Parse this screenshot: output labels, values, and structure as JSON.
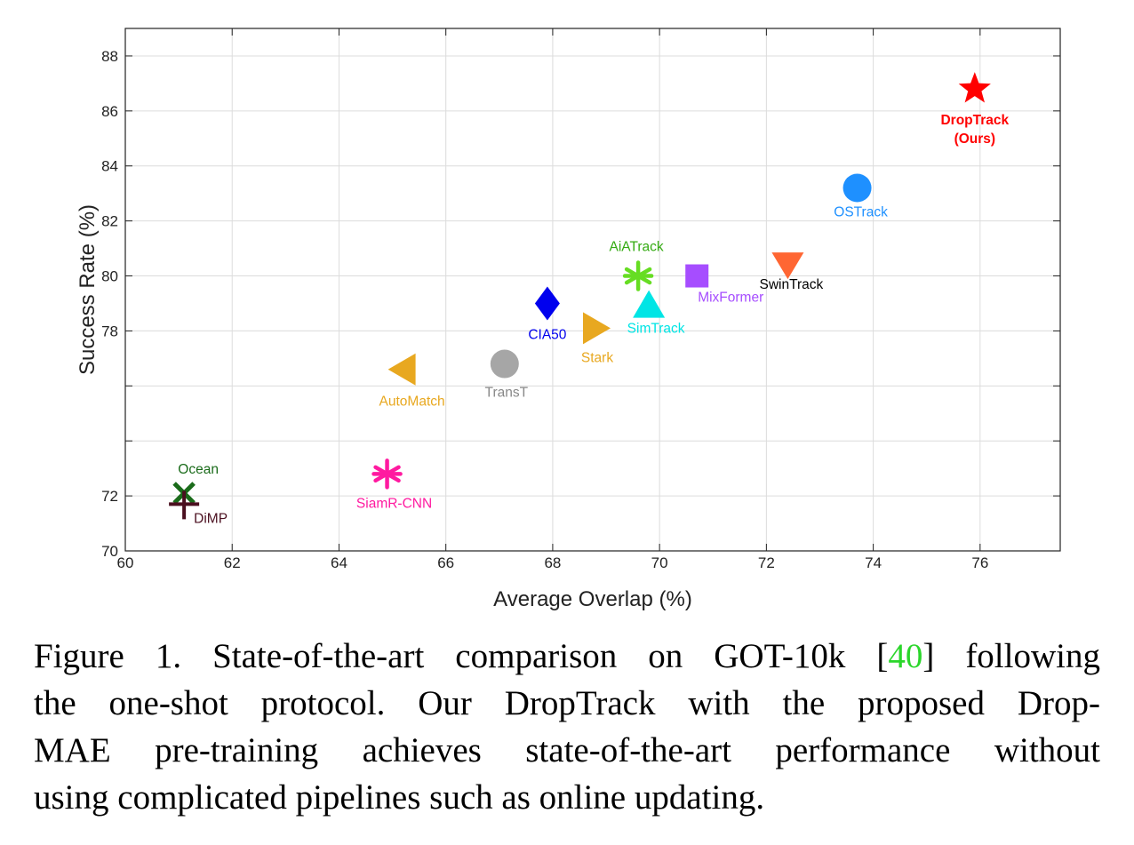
{
  "chart_data": {
    "type": "scatter",
    "xlabel": "Average Overlap (%)",
    "ylabel": "Success Rate (%)",
    "xlim": [
      60,
      77.5
    ],
    "ylim": [
      70,
      89
    ],
    "xticks": [
      60,
      62,
      64,
      66,
      68,
      70,
      72,
      74,
      76
    ],
    "yticks": [
      70,
      72,
      74,
      76,
      78,
      80,
      82,
      84,
      86,
      88
    ],
    "ytick_labels": [
      "70",
      "72",
      "",
      "",
      "78",
      "80",
      "82",
      "84",
      "86",
      "88"
    ],
    "grid": true,
    "points": [
      {
        "name": "DropTrack",
        "sub": "(Ours)",
        "x": 75.9,
        "y": 86.8,
        "marker": "star",
        "color": "#ff0000",
        "bold": true
      },
      {
        "name": "OSTrack",
        "x": 73.7,
        "y": 83.2,
        "marker": "circle",
        "color": "#1e90ff"
      },
      {
        "name": "SwinTrack",
        "x": 72.4,
        "y": 80.4,
        "marker": "triangle-down",
        "color": "#ff6633",
        "label_color": "#000000"
      },
      {
        "name": "MixFormer",
        "x": 70.7,
        "y": 80.0,
        "marker": "square",
        "color": "#a64dff"
      },
      {
        "name": "AiATrack",
        "x": 69.6,
        "y": 80.0,
        "marker": "asterisk",
        "color": "#66dd22",
        "label_color": "#33aa11"
      },
      {
        "name": "SimTrack",
        "x": 69.8,
        "y": 78.9,
        "marker": "triangle-up",
        "color": "#00e5e5"
      },
      {
        "name": "CIA50",
        "x": 67.9,
        "y": 79.0,
        "marker": "diamond",
        "color": "#0000ee"
      },
      {
        "name": "Stark",
        "x": 68.8,
        "y": 78.1,
        "marker": "triangle-right",
        "color": "#e8a820"
      },
      {
        "name": "TransT",
        "x": 67.1,
        "y": 76.8,
        "marker": "circle",
        "color": "#a6a6a6",
        "label_color": "#888888"
      },
      {
        "name": "AutoMatch",
        "x": 65.2,
        "y": 76.6,
        "marker": "triangle-left",
        "color": "#e8a820"
      },
      {
        "name": "SiamR-CNN",
        "x": 64.9,
        "y": 72.8,
        "marker": "asterisk",
        "color": "#ff1aa0"
      },
      {
        "name": "Ocean",
        "x": 61.1,
        "y": 72.1,
        "marker": "x",
        "color": "#1a6b1a"
      },
      {
        "name": "DiMP",
        "x": 61.1,
        "y": 71.7,
        "marker": "plus",
        "color": "#4a0f1f"
      }
    ]
  },
  "caption": {
    "lines": [
      {
        "segments": [
          {
            "text": "Figure 1. State-of-the-art comparison on GOT-10k ["
          },
          {
            "text": "40",
            "cite": true
          },
          {
            "text": "] following"
          }
        ]
      },
      {
        "segments": [
          {
            "text": "the one-shot protocol.  Our DropTrack with the proposed Drop-"
          }
        ]
      },
      {
        "segments": [
          {
            "text": "MAE pre-training achieves state-of-the-art performance without"
          }
        ]
      },
      {
        "segments": [
          {
            "text": "using complicated pipelines such as online updating."
          }
        ]
      }
    ]
  }
}
